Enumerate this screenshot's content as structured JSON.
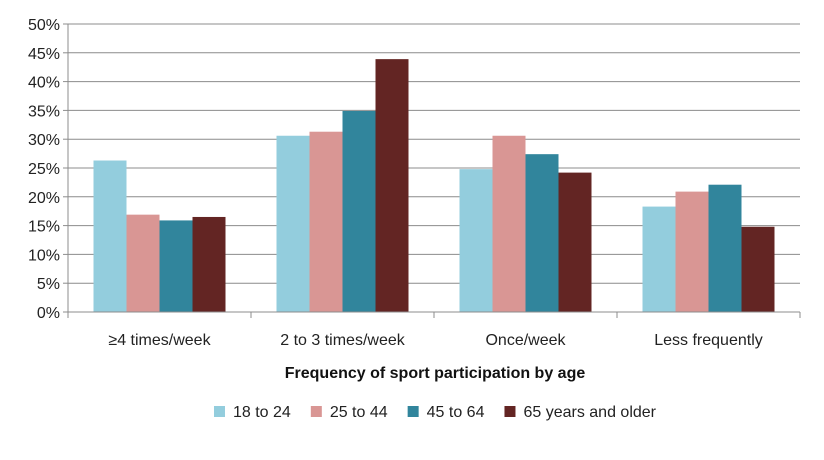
{
  "chart_data": {
    "type": "bar",
    "title": "",
    "xlabel": "Frequency of sport participation by age",
    "ylabel": "",
    "ylim": [
      0,
      50
    ],
    "y_ticks": [
      "0%",
      "5%",
      "10%",
      "15%",
      "20%",
      "25%",
      "30%",
      "35%",
      "40%",
      "45%",
      "50%"
    ],
    "grid": true,
    "legend_position": "bottom",
    "categories": [
      "≥4 times/week",
      "2 to 3 times/week",
      "Once/week",
      "Less frequently"
    ],
    "series": [
      {
        "name": "18 to 24",
        "color": "#93CDDD",
        "values": [
          26.3,
          30.6,
          24.8,
          18.3
        ]
      },
      {
        "name": "25 to 44",
        "color": "#D99694",
        "values": [
          16.9,
          31.3,
          30.6,
          20.9
        ]
      },
      {
        "name": "45 to 64",
        "color": "#31859C",
        "values": [
          15.9,
          34.9,
          27.4,
          22.1
        ]
      },
      {
        "name": "65 years and older",
        "color": "#632523",
        "values": [
          16.5,
          43.9,
          24.2,
          14.8
        ]
      }
    ]
  }
}
